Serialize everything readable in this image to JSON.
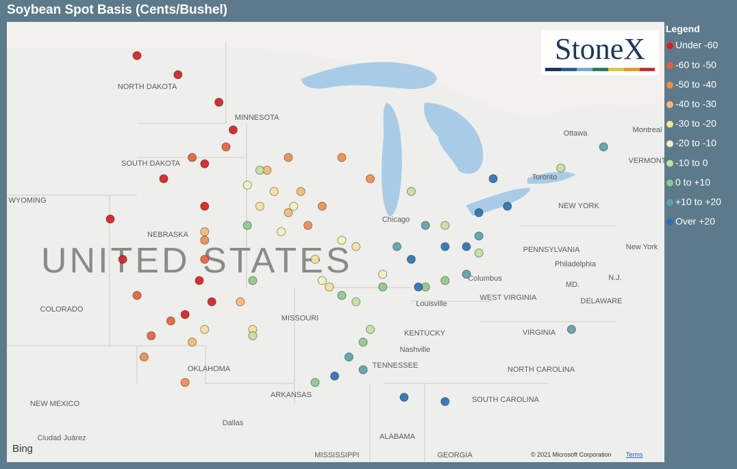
{
  "title": "Soybean Spot Basis (Cents/Bushel)",
  "logo": "StoneX",
  "legend": {
    "title": "Legend",
    "classes": [
      {
        "label": "Under -60",
        "color": "#d42020",
        "lon": [
          -102.1,
          -99.8,
          -97.5,
          -96.7,
          -98.3,
          -100.6,
          -98.3,
          -102.9,
          -98.6,
          -97.9,
          -99.4,
          -103.6
        ],
        "lat": [
          49.7,
          48.8,
          47.5,
          46.2,
          44.6,
          43.9,
          42.6,
          40.1,
          39.1,
          38.1,
          37.5,
          42.0
        ]
      },
      {
        "label": "-60 to -50",
        "color": "#e8603c",
        "lon": [
          -99.0,
          -97.1,
          -100.2,
          -101.3,
          -98.3,
          -102.1
        ],
        "lat": [
          44.9,
          45.4,
          37.2,
          36.5,
          40.1,
          38.4
        ]
      },
      {
        "label": "-50 to -40",
        "color": "#ef8d4b",
        "lon": [
          -93.6,
          -89.0,
          -91.7,
          -101.7,
          -99.4,
          -98.3,
          -90.6,
          -92.5
        ],
        "lat": [
          44.9,
          43.9,
          42.6,
          35.5,
          34.3,
          41.0,
          44.9,
          41.7
        ]
      },
      {
        "label": "-40 to -30",
        "color": "#f5b872",
        "lon": [
          -94.8,
          -92.9,
          -98.3,
          -99.0,
          -96.3,
          -93.6
        ],
        "lat": [
          44.3,
          43.3,
          41.4,
          36.2,
          38.1,
          42.3
        ]
      },
      {
        "label": "-30 to -20",
        "color": "#f8e19a",
        "lon": [
          -94.4,
          -95.2,
          -92.1,
          -89.8,
          -98.3,
          -95.6,
          -91.3
        ],
        "lat": [
          43.3,
          42.6,
          40.1,
          40.7,
          36.8,
          36.8,
          38.8
        ]
      },
      {
        "label": "-20 to -10",
        "color": "#f3f1b8",
        "lon": [
          -93.3,
          -90.6,
          -88.3,
          -91.7,
          -95.9,
          -94.0
        ],
        "lat": [
          42.6,
          41.0,
          39.4,
          39.1,
          43.6,
          41.4
        ]
      },
      {
        "label": "-10 to 0",
        "color": "#c3e0a0",
        "lon": [
          -86.7,
          -84.8,
          -89.8,
          -95.6,
          -89.0,
          -95.2,
          -82.9,
          -78.3
        ],
        "lat": [
          43.3,
          41.7,
          38.1,
          36.5,
          36.8,
          44.3,
          40.4,
          44.4
        ]
      },
      {
        "label": "0 to +10",
        "color": "#8cc98a",
        "lon": [
          -95.9,
          -90.6,
          -88.3,
          -85.9,
          -89.4,
          -92.1,
          -95.6,
          -84.8
        ],
        "lat": [
          41.7,
          38.4,
          38.8,
          38.8,
          36.2,
          34.3,
          39.1,
          39.1
        ]
      },
      {
        "label": "+10 to +20",
        "color": "#5aa3a8",
        "lon": [
          -89.4,
          -90.2,
          -87.5,
          -85.9,
          -82.9,
          -77.7,
          -75.9,
          -83.6
        ],
        "lat": [
          34.9,
          35.5,
          40.7,
          41.7,
          41.2,
          36.8,
          45.4,
          39.4
        ]
      },
      {
        "label": "Over +20",
        "color": "#2a72b5",
        "lon": [
          -82.1,
          -81.3,
          -82.9,
          -84.8,
          -86.7,
          -91.0,
          -87.1,
          -84.8,
          -86.3,
          -83.6
        ],
        "lat": [
          43.9,
          42.6,
          42.3,
          40.7,
          40.1,
          34.6,
          33.6,
          33.4,
          38.8,
          40.7
        ]
      }
    ]
  },
  "map": {
    "labels": [
      "NORTH DAKOTA",
      "MINNESOTA",
      "SOUTH DAKOTA",
      "WYOMING",
      "NEBRASKA",
      "UNITED STATES",
      "COLORADO",
      "MISSOURI",
      "KENTUCKY",
      "TENNESSEE",
      "OKLAHOMA",
      "ARKANSAS",
      "NEW MEXICO",
      "ALABAMA",
      "MISSISSIPPI",
      "GEORGIA",
      "SOUTH CAROLINA",
      "NORTH CAROLINA",
      "VIRGINIA",
      "WEST VIRGINIA",
      "PENNSYLVANIA",
      "NEW YORK",
      "Dallas",
      "Chicago",
      "Columbus",
      "Louisville",
      "Nashville",
      "Philadelphia",
      "New York",
      "Ottawa",
      "Montreal",
      "Toronto",
      "Ciudad Juárez",
      "DELAWARE",
      "MD.",
      "N.J.",
      "VERMONT"
    ],
    "provider": "Bing",
    "attribution": "© 2021 Microsoft Corporation",
    "terms": "Terms"
  }
}
